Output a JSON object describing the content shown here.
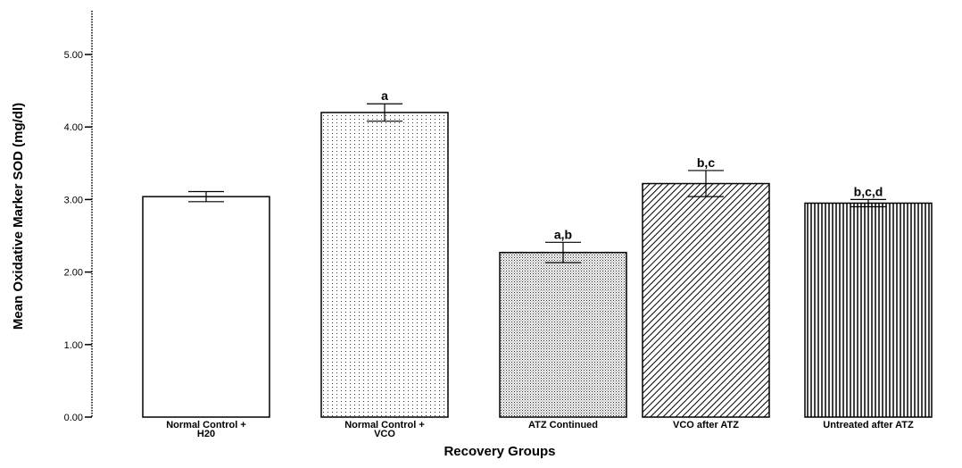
{
  "chart_data": {
    "type": "bar",
    "title": "",
    "xlabel": "Recovery Groups",
    "ylabel": "Mean Oxidative Marker SOD (mg/dl)",
    "ylim": [
      0,
      5.5
    ],
    "yticks": [
      "0.00",
      "1.00",
      "2.00",
      "3.00",
      "4.00",
      "5.00"
    ],
    "grid": false,
    "categories": [
      [
        "Normal Control +",
        "H20"
      ],
      [
        "Normal Control +",
        "VCO"
      ],
      [
        "ATZ Continued"
      ],
      [
        "VCO  after ATZ"
      ],
      [
        "Untreated after ATZ"
      ]
    ],
    "values": [
      3.04,
      4.2,
      2.27,
      3.22,
      2.95
    ],
    "error": [
      0.07,
      0.12,
      0.14,
      0.18,
      0.05
    ],
    "annotations": [
      "",
      "a",
      "a,b",
      "b,c",
      "b,c,d"
    ],
    "patterns": [
      "none",
      "dots",
      "fine-dots",
      "diagonal",
      "vertical"
    ]
  }
}
